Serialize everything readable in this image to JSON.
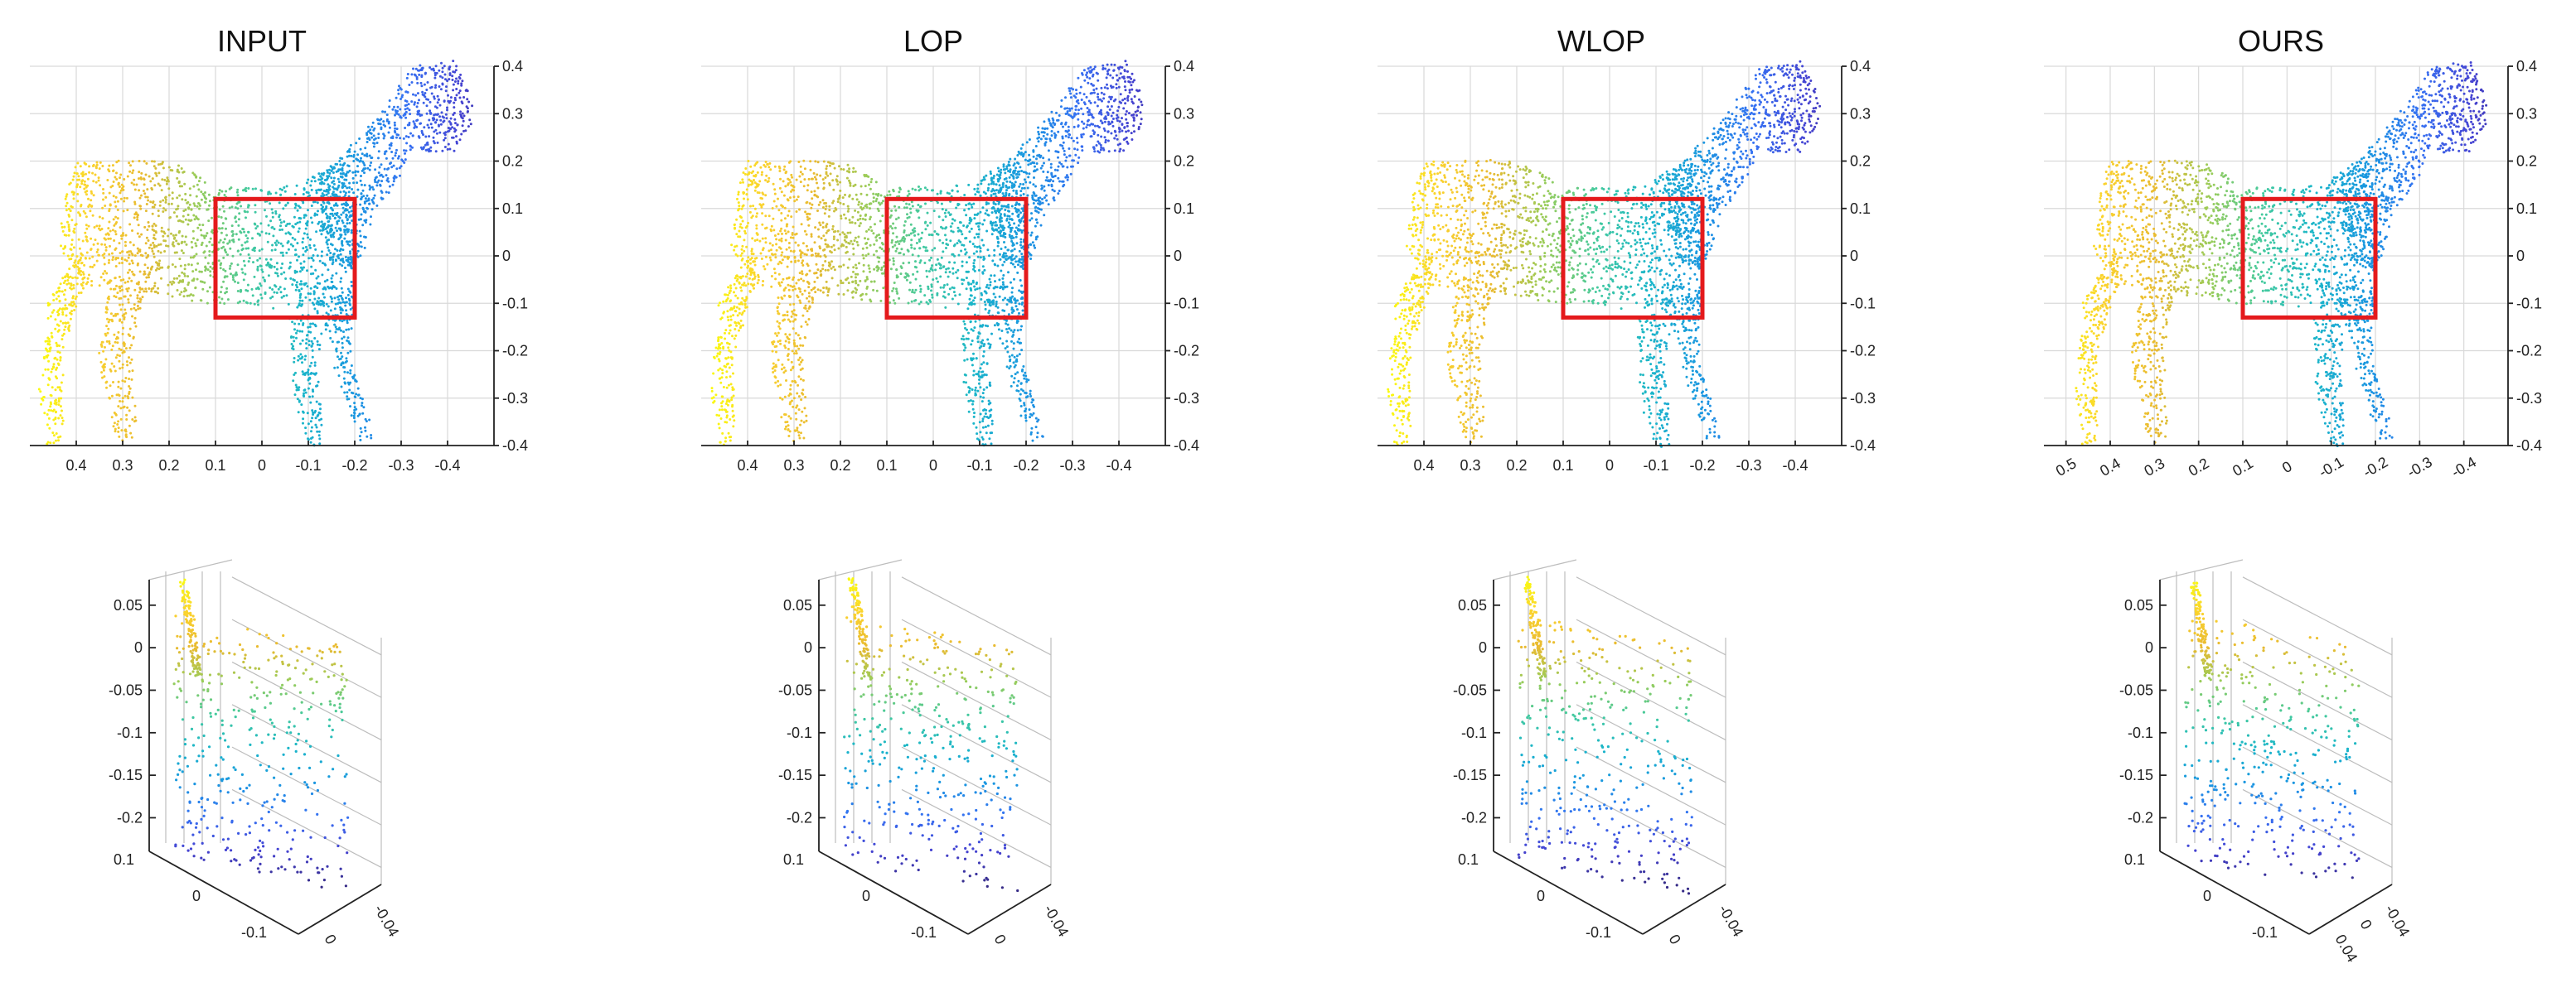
{
  "chart_data": [
    {
      "type": "scatter",
      "panel": "top",
      "title": "INPUT",
      "xticks": [
        "0.4",
        "0.3",
        "0.2",
        "0.1",
        "0",
        "-0.1",
        "-0.2",
        "-0.3",
        "-0.4"
      ],
      "yticks": [
        "0.4",
        "0.3",
        "0.2",
        "0.1",
        "0",
        "-0.1",
        "-0.2",
        "-0.3",
        "-0.4"
      ],
      "xlim": [
        0.5,
        -0.5
      ],
      "ylim": [
        -0.4,
        0.4
      ],
      "highlight_box": {
        "x": [
          0.1,
          -0.2
        ],
        "y": [
          -0.13,
          0.12
        ],
        "color": "#e41a1c"
      },
      "colormap": "parula",
      "grid": true
    },
    {
      "type": "scatter",
      "panel": "top",
      "title": "LOP",
      "xticks": [
        "0.4",
        "0.3",
        "0.2",
        "0.1",
        "0",
        "-0.1",
        "-0.2",
        "-0.3",
        "-0.4"
      ],
      "yticks": [
        "0.4",
        "0.3",
        "0.2",
        "0.1",
        "0",
        "-0.1",
        "-0.2",
        "-0.3",
        "-0.4"
      ],
      "xlim": [
        0.5,
        -0.5
      ],
      "ylim": [
        -0.4,
        0.4
      ],
      "highlight_box": {
        "x": [
          0.1,
          -0.2
        ],
        "y": [
          -0.13,
          0.12
        ],
        "color": "#e41a1c"
      },
      "colormap": "parula",
      "grid": true
    },
    {
      "type": "scatter",
      "panel": "top",
      "title": "WLOP",
      "xticks": [
        "0.4",
        "0.3",
        "0.2",
        "0.1",
        "0",
        "-0.1",
        "-0.2",
        "-0.3",
        "-0.4"
      ],
      "yticks": [
        "0.4",
        "0.3",
        "0.2",
        "0.1",
        "0",
        "-0.1",
        "-0.2",
        "-0.3",
        "-0.4"
      ],
      "xlim": [
        0.5,
        -0.5
      ],
      "ylim": [
        -0.4,
        0.4
      ],
      "highlight_box": {
        "x": [
          0.1,
          -0.2
        ],
        "y": [
          -0.13,
          0.12
        ],
        "color": "#e41a1c"
      },
      "colormap": "parula",
      "grid": true
    },
    {
      "type": "scatter",
      "panel": "top",
      "title": "OURS",
      "xticks": [
        "0.5",
        "0.4",
        "0.3",
        "0.2",
        "0.1",
        "0",
        "-0.1",
        "-0.2",
        "-0.3",
        "-0.4"
      ],
      "yticks": [
        "0.4",
        "0.3",
        "0.2",
        "0.1",
        "0",
        "-0.1",
        "-0.2",
        "-0.3",
        "-0.4"
      ],
      "xlim": [
        0.55,
        -0.5
      ],
      "ylim": [
        -0.4,
        0.4
      ],
      "highlight_box": {
        "x": [
          0.1,
          -0.2
        ],
        "y": [
          -0.13,
          0.12
        ],
        "color": "#e41a1c"
      },
      "colormap": "parula",
      "grid": true
    },
    {
      "type": "scatter",
      "panel": "bottom",
      "projection": "3d",
      "title": "",
      "zticks": [
        "0.05",
        "0",
        "-0.05",
        "-0.1",
        "-0.15",
        "-0.2"
      ],
      "yticks": [
        "0.1",
        "0",
        "-0.1"
      ],
      "xticks": [
        "0",
        "-0.04"
      ],
      "zlim": [
        -0.22,
        0.08
      ],
      "colormap": "parula"
    },
    {
      "type": "scatter",
      "panel": "bottom",
      "projection": "3d",
      "title": "",
      "zticks": [
        "0.05",
        "0",
        "-0.05",
        "-0.1",
        "-0.15",
        "-0.2"
      ],
      "yticks": [
        "0.1",
        "0",
        "-0.1"
      ],
      "xticks": [
        "0",
        "-0.04"
      ],
      "zlim": [
        -0.22,
        0.08
      ],
      "colormap": "parula"
    },
    {
      "type": "scatter",
      "panel": "bottom",
      "projection": "3d",
      "title": "",
      "zticks": [
        "0.05",
        "0",
        "-0.05",
        "-0.1",
        "-0.15",
        "-0.2"
      ],
      "yticks": [
        "0.1",
        "0",
        "-0.1"
      ],
      "xticks": [
        "0",
        "-0.04"
      ],
      "zlim": [
        -0.22,
        0.08
      ],
      "colormap": "parula"
    },
    {
      "type": "scatter",
      "panel": "bottom",
      "projection": "3d",
      "title": "",
      "zticks": [
        "0.05",
        "0",
        "-0.05",
        "-0.1",
        "-0.15",
        "-0.2"
      ],
      "yticks": [
        "0.1",
        "0",
        "-0.1"
      ],
      "xticks": [
        "0.04",
        "0",
        "-0.04"
      ],
      "zlim": [
        -0.22,
        0.08
      ],
      "colormap": "parula"
    }
  ]
}
